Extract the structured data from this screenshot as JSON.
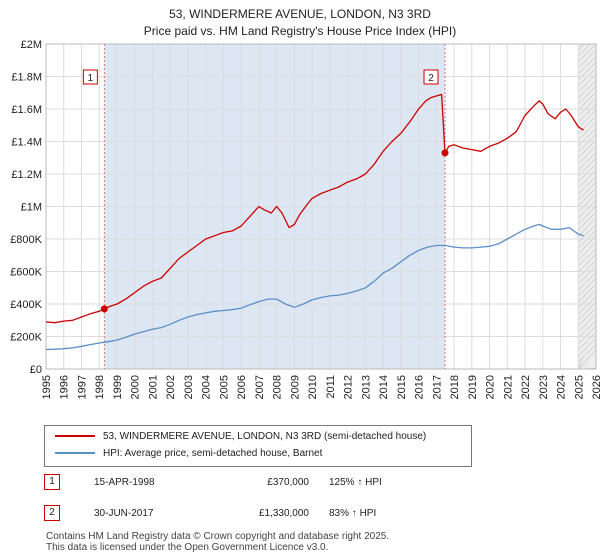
{
  "title_line1": "53, WINDERMERE AVENUE, LONDON, N3 3RD",
  "title_line2": "Price paid vs. HM Land Registry's House Price Index (HPI)",
  "colors": {
    "property": "#cc0000",
    "hpi": "#5b8fc7",
    "grid": "#dcdcdc",
    "shade": "#dde6f3",
    "marker_line": "#e07070"
  },
  "chart_data": {
    "type": "line",
    "title": "Price paid vs. HM Land Registry's House Price Index (HPI)",
    "xlabel": "",
    "ylabel": "",
    "xlim": [
      1995,
      2026
    ],
    "ylim": [
      0,
      2000000
    ],
    "x_ticks": [
      "1995",
      "1996",
      "1997",
      "1998",
      "1999",
      "2000",
      "2001",
      "2002",
      "2003",
      "2004",
      "2005",
      "2006",
      "2007",
      "2008",
      "2009",
      "2010",
      "2011",
      "2012",
      "2013",
      "2014",
      "2015",
      "2016",
      "2017",
      "2018",
      "2019",
      "2020",
      "2021",
      "2022",
      "2023",
      "2024",
      "2025",
      "2026"
    ],
    "y_ticks": [
      {
        "value": 0,
        "label": "£0"
      },
      {
        "value": 200000,
        "label": "£200K"
      },
      {
        "value": 400000,
        "label": "£400K"
      },
      {
        "value": 600000,
        "label": "£600K"
      },
      {
        "value": 800000,
        "label": "£800K"
      },
      {
        "value": 1000000,
        "label": "£1M"
      },
      {
        "value": 1200000,
        "label": "£1.2M"
      },
      {
        "value": 1400000,
        "label": "£1.4M"
      },
      {
        "value": 1600000,
        "label": "£1.6M"
      },
      {
        "value": 1800000,
        "label": "£1.8M"
      },
      {
        "value": 2000000,
        "label": "£2M"
      }
    ],
    "series": [
      {
        "name": "53, WINDERMERE AVENUE, LONDON, N3 3RD (semi-detached house)",
        "color": "#cc0000",
        "x": [
          1995.0,
          1995.5,
          1996.0,
          1996.5,
          1997.0,
          1997.5,
          1998.0,
          1998.29,
          1998.6,
          1999.0,
          1999.5,
          2000.0,
          2000.5,
          2001.0,
          2001.5,
          2002.0,
          2002.5,
          2003.0,
          2003.5,
          2004.0,
          2004.5,
          2005.0,
          2005.5,
          2006.0,
          2006.5,
          2007.0,
          2007.3,
          2007.7,
          2008.0,
          2008.3,
          2008.7,
          2009.0,
          2009.3,
          2009.7,
          2010.0,
          2010.5,
          2011.0,
          2011.5,
          2012.0,
          2012.5,
          2013.0,
          2013.5,
          2014.0,
          2014.5,
          2015.0,
          2015.5,
          2016.0,
          2016.4,
          2016.7,
          2017.0,
          2017.3,
          2017.49,
          2017.7,
          2018.0,
          2018.5,
          2019.0,
          2019.5,
          2020.0,
          2020.5,
          2021.0,
          2021.5,
          2022.0,
          2022.5,
          2022.8,
          2023.0,
          2023.3,
          2023.7,
          2024.0,
          2024.3,
          2024.6,
          2025.0,
          2025.3
        ],
        "y": [
          290000,
          285000,
          295000,
          300000,
          320000,
          340000,
          355000,
          370000,
          385000,
          400000,
          430000,
          470000,
          510000,
          540000,
          560000,
          620000,
          680000,
          720000,
          760000,
          800000,
          820000,
          840000,
          850000,
          880000,
          940000,
          1000000,
          980000,
          960000,
          1000000,
          960000,
          870000,
          890000,
          950000,
          1010000,
          1050000,
          1080000,
          1100000,
          1120000,
          1150000,
          1170000,
          1200000,
          1260000,
          1340000,
          1400000,
          1450000,
          1520000,
          1600000,
          1650000,
          1670000,
          1680000,
          1690000,
          1330000,
          1370000,
          1380000,
          1360000,
          1350000,
          1340000,
          1370000,
          1390000,
          1420000,
          1460000,
          1560000,
          1620000,
          1650000,
          1630000,
          1570000,
          1540000,
          1580000,
          1600000,
          1560000,
          1490000,
          1470000
        ]
      },
      {
        "name": "HPI: Average price, semi-detached house, Barnet",
        "color": "#5b8fc7",
        "x": [
          1995.0,
          1995.5,
          1996.0,
          1996.5,
          1997.0,
          1997.5,
          1998.0,
          1998.5,
          1999.0,
          1999.5,
          2000.0,
          2000.5,
          2001.0,
          2001.5,
          2002.0,
          2002.5,
          2003.0,
          2003.5,
          2004.0,
          2004.5,
          2005.0,
          2005.5,
          2006.0,
          2006.5,
          2007.0,
          2007.5,
          2008.0,
          2008.5,
          2009.0,
          2009.5,
          2010.0,
          2010.5,
          2011.0,
          2011.5,
          2012.0,
          2012.5,
          2013.0,
          2013.5,
          2014.0,
          2014.5,
          2015.0,
          2015.5,
          2016.0,
          2016.5,
          2017.0,
          2017.5,
          2018.0,
          2018.5,
          2019.0,
          2019.5,
          2020.0,
          2020.5,
          2021.0,
          2021.5,
          2022.0,
          2022.5,
          2022.8,
          2023.0,
          2023.5,
          2024.0,
          2024.5,
          2025.0,
          2025.3
        ],
        "y": [
          120000,
          122000,
          125000,
          130000,
          140000,
          150000,
          160000,
          168000,
          178000,
          195000,
          215000,
          230000,
          245000,
          255000,
          275000,
          300000,
          320000,
          335000,
          345000,
          355000,
          360000,
          365000,
          375000,
          395000,
          415000,
          430000,
          430000,
          400000,
          380000,
          400000,
          425000,
          440000,
          450000,
          455000,
          465000,
          480000,
          500000,
          540000,
          590000,
          620000,
          660000,
          700000,
          730000,
          750000,
          760000,
          760000,
          750000,
          745000,
          745000,
          750000,
          755000,
          770000,
          800000,
          830000,
          860000,
          880000,
          890000,
          880000,
          860000,
          860000,
          870000,
          830000,
          820000
        ]
      }
    ],
    "sales": [
      {
        "id": "1",
        "x": 1998.29,
        "price": 370000,
        "date": "15-APR-1998",
        "price_label": "£370,000",
        "hpi_label": "125% ↑ HPI"
      },
      {
        "id": "2",
        "x": 2017.49,
        "price": 1330000,
        "date": "30-JUN-2017",
        "price_label": "£1,330,000",
        "hpi_label": "83% ↑ HPI"
      }
    ],
    "future_from": 2025.0
  },
  "legend": {
    "property_label": "53, WINDERMERE AVENUE, LONDON, N3 3RD (semi-detached house)",
    "hpi_label": "HPI: Average price, semi-detached house, Barnet"
  },
  "footer": {
    "line1": "Contains HM Land Registry data © Crown copyright and database right 2025.",
    "line2": "This data is licensed under the Open Government Licence v3.0."
  }
}
